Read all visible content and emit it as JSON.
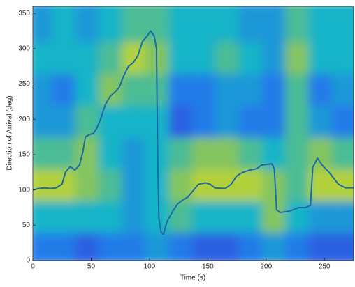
{
  "chart_data": {
    "type": "heatmap-line",
    "x_label": "Time (s)",
    "y_label": "Direction of Arrival (deg)",
    "xlim": [
      0,
      275
    ],
    "ylim": [
      0,
      360
    ],
    "xticks": [
      0,
      50,
      100,
      150,
      200,
      250
    ],
    "yticks": [
      0,
      50,
      100,
      150,
      200,
      250,
      300,
      350
    ],
    "heatmap": {
      "x": [
        10,
        30,
        50,
        70,
        90,
        110,
        130,
        150,
        170,
        190,
        210,
        230,
        250,
        270
      ],
      "y": [
        22.5,
        67.5,
        112.5,
        157.5,
        202.5,
        247.5,
        292.5,
        337.5
      ],
      "z": [
        [
          0.3,
          0.3,
          0.2,
          0.3,
          0.3,
          0.4,
          0.3,
          0.2,
          0.2,
          0.3,
          0.4,
          0.3,
          0.2,
          0.2
        ],
        [
          0.5,
          0.5,
          0.5,
          0.5,
          0.4,
          0.5,
          0.6,
          0.5,
          0.5,
          0.5,
          0.7,
          0.5,
          0.4,
          0.4
        ],
        [
          0.8,
          0.8,
          0.7,
          0.6,
          0.4,
          0.5,
          0.7,
          0.8,
          0.8,
          0.8,
          0.7,
          0.6,
          0.8,
          0.8
        ],
        [
          0.6,
          0.6,
          0.7,
          0.5,
          0.4,
          0.5,
          0.6,
          0.7,
          0.7,
          0.6,
          0.5,
          0.6,
          0.7,
          0.6
        ],
        [
          0.4,
          0.4,
          0.6,
          0.5,
          0.5,
          0.5,
          0.2,
          0.3,
          0.4,
          0.3,
          0.3,
          0.6,
          0.4,
          0.3
        ],
        [
          0.4,
          0.3,
          0.5,
          0.7,
          0.6,
          0.6,
          0.3,
          0.3,
          0.4,
          0.4,
          0.3,
          0.6,
          0.3,
          0.4
        ],
        [
          0.5,
          0.5,
          0.5,
          0.6,
          0.8,
          0.7,
          0.5,
          0.5,
          0.6,
          0.5,
          0.4,
          0.7,
          0.5,
          0.5
        ],
        [
          0.4,
          0.5,
          0.4,
          0.5,
          0.6,
          0.6,
          0.5,
          0.5,
          0.5,
          0.4,
          0.4,
          0.6,
          0.5,
          0.5
        ]
      ]
    },
    "series": [
      {
        "color": "#1b6aa5",
        "x": [
          0,
          5,
          10,
          15,
          20,
          25,
          28,
          32,
          36,
          40,
          43,
          45,
          48,
          52,
          55,
          58,
          62,
          66,
          70,
          74,
          78,
          82,
          86,
          90,
          94,
          98,
          101,
          104,
          106,
          107,
          108,
          110,
          112,
          115,
          120,
          124,
          128,
          133,
          138,
          142,
          148,
          152,
          156,
          165,
          170,
          175,
          180,
          186,
          192,
          196,
          205,
          207,
          209,
          212,
          220,
          228,
          234,
          238,
          240,
          244,
          248,
          254,
          262,
          268,
          275
        ],
        "values": [
          100,
          102,
          103,
          102,
          103,
          108,
          125,
          133,
          128,
          135,
          155,
          175,
          178,
          180,
          188,
          200,
          220,
          232,
          238,
          245,
          262,
          275,
          280,
          290,
          310,
          318,
          325,
          318,
          300,
          150,
          60,
          40,
          37,
          55,
          70,
          80,
          85,
          90,
          100,
          108,
          110,
          108,
          103,
          102,
          108,
          120,
          125,
          128,
          130,
          135,
          137,
          130,
          72,
          68,
          70,
          75,
          75,
          78,
          132,
          145,
          135,
          125,
          108,
          103,
          103
        ]
      }
    ]
  }
}
